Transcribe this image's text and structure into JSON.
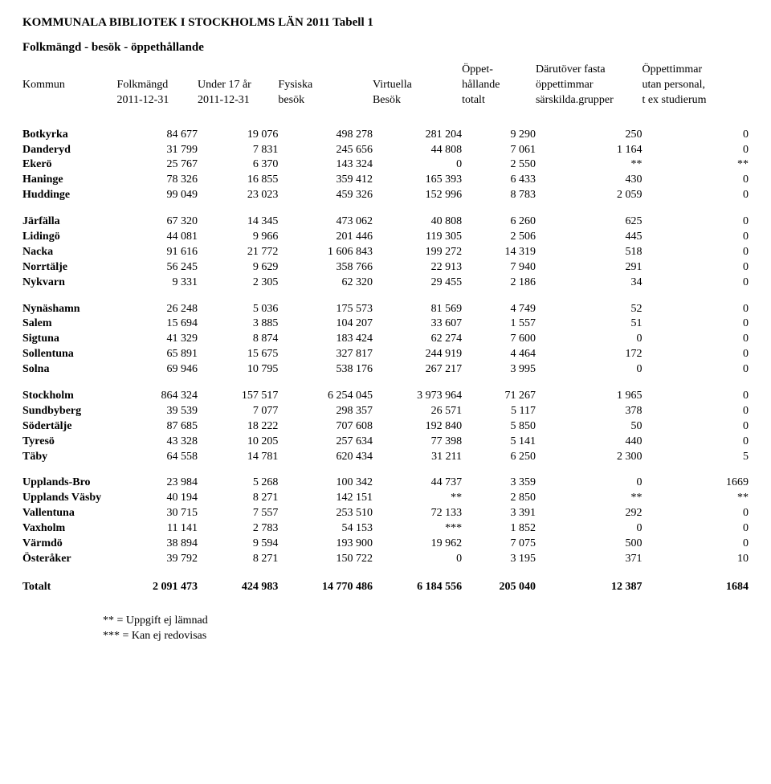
{
  "title": "KOMMUNALA BIBLIOTEK I STOCKHOLMS LÄN 2011   Tabell 1",
  "subtitle": "Folkmängd - besök - öppethållande",
  "header": {
    "c0": [
      "",
      "Kommun",
      ""
    ],
    "c1": [
      "",
      "Folkmängd",
      "2011-12-31"
    ],
    "c2": [
      "",
      "Under 17 år",
      "2011-12-31"
    ],
    "c3": [
      "",
      "Fysiska",
      "besök"
    ],
    "c4": [
      "",
      "Virtuella",
      "Besök"
    ],
    "c5": [
      "Öppet-",
      "hållande",
      "totalt"
    ],
    "c6": [
      "Därutöver fasta",
      "öppettimmar",
      "särskilda.grupper"
    ],
    "c7": [
      "Öppettimmar",
      "utan personal,",
      "t ex studierum"
    ]
  },
  "groups": [
    [
      {
        "name": "Botkyrka",
        "v": [
          "84 677",
          "19 076",
          "498 278",
          "281 204",
          "9 290",
          "250",
          "0"
        ]
      },
      {
        "name": "Danderyd",
        "v": [
          "31 799",
          "7 831",
          "245 656",
          "44 808",
          "7 061",
          "1 164",
          "0"
        ]
      },
      {
        "name": "Ekerö",
        "v": [
          "25 767",
          "6 370",
          "143 324",
          "0",
          "2 550",
          "**",
          "**"
        ]
      },
      {
        "name": "Haninge",
        "v": [
          "78 326",
          "16 855",
          "359 412",
          "165 393",
          "6 433",
          "430",
          "0"
        ]
      },
      {
        "name": "Huddinge",
        "v": [
          "99 049",
          "23 023",
          "459 326",
          "152 996",
          "8 783",
          "2 059",
          "0"
        ]
      }
    ],
    [
      {
        "name": "Järfälla",
        "v": [
          "67 320",
          "14 345",
          "473 062",
          "40 808",
          "6 260",
          "625",
          "0"
        ]
      },
      {
        "name": "Lidingö",
        "v": [
          "44 081",
          "9 966",
          "201 446",
          "119 305",
          "2 506",
          "445",
          "0"
        ]
      },
      {
        "name": "Nacka",
        "v": [
          "91 616",
          "21 772",
          "1 606 843",
          "199 272",
          "14 319",
          "518",
          "0"
        ]
      },
      {
        "name": "Norrtälje",
        "v": [
          "56 245",
          "9 629",
          "358 766",
          "22 913",
          "7 940",
          "291",
          "0"
        ]
      },
      {
        "name": "Nykvarn",
        "v": [
          "9 331",
          "2 305",
          "62 320",
          "29 455",
          "2 186",
          "34",
          "0"
        ]
      }
    ],
    [
      {
        "name": "Nynäshamn",
        "v": [
          "26 248",
          "5 036",
          "175 573",
          "81 569",
          "4 749",
          "52",
          "0"
        ]
      },
      {
        "name": "Salem",
        "v": [
          "15 694",
          "3 885",
          "104 207",
          "33 607",
          "1 557",
          "51",
          "0"
        ]
      },
      {
        "name": "Sigtuna",
        "v": [
          "41 329",
          "8 874",
          "183 424",
          "62 274",
          "7 600",
          "0",
          "0"
        ]
      },
      {
        "name": "Sollentuna",
        "v": [
          "65 891",
          "15 675",
          "327 817",
          "244 919",
          "4 464",
          "172",
          "0"
        ]
      },
      {
        "name": "Solna",
        "v": [
          "69 946",
          "10 795",
          "538 176",
          "267 217",
          "3 995",
          "0",
          "0"
        ]
      }
    ],
    [
      {
        "name": "Stockholm",
        "v": [
          "864 324",
          "157 517",
          "6 254 045",
          "3 973 964",
          "71 267",
          "1 965",
          "0"
        ]
      },
      {
        "name": "Sundbyberg",
        "v": [
          "39 539",
          "7 077",
          "298 357",
          "26 571",
          "5 117",
          "378",
          "0"
        ]
      },
      {
        "name": "Södertälje",
        "v": [
          "87 685",
          "18 222",
          "707 608",
          "192 840",
          "5 850",
          "50",
          "0"
        ]
      },
      {
        "name": "Tyresö",
        "v": [
          "43 328",
          "10 205",
          "257 634",
          "77 398",
          "5 141",
          "440",
          "0"
        ]
      },
      {
        "name": "Täby",
        "v": [
          "64 558",
          "14 781",
          "620 434",
          "31 211",
          "6 250",
          "2 300",
          "5"
        ]
      }
    ],
    [
      {
        "name": "Upplands-Bro",
        "v": [
          "23 984",
          "5 268",
          "100 342",
          "44 737",
          "3 359",
          "0",
          "1669"
        ]
      },
      {
        "name": "Upplands Väsby",
        "v": [
          "40 194",
          "8 271",
          "142 151",
          "**",
          "2 850",
          "**",
          "**"
        ]
      },
      {
        "name": "Vallentuna",
        "v": [
          "30 715",
          "7 557",
          "253 510",
          "72 133",
          "3 391",
          "292",
          "0"
        ]
      },
      {
        "name": "Vaxholm",
        "v": [
          "11 141",
          "2 783",
          "54 153",
          "***",
          "1 852",
          "0",
          "0"
        ]
      },
      {
        "name": "Värmdö",
        "v": [
          "38 894",
          "9 594",
          "193 900",
          "19 962",
          "7 075",
          "500",
          "0"
        ]
      },
      {
        "name": "Österåker",
        "v": [
          "39 792",
          "8 271",
          "150 722",
          "0",
          "3 195",
          "371",
          "10"
        ]
      }
    ]
  ],
  "totals": {
    "name": "Totalt",
    "v": [
      "2 091 473",
      "424 983",
      "14 770 486",
      "6 184 556",
      "205 040",
      "12 387",
      "1684"
    ]
  },
  "footnotes": [
    "** = Uppgift ej lämnad",
    "*** = Kan ej redovisas"
  ]
}
